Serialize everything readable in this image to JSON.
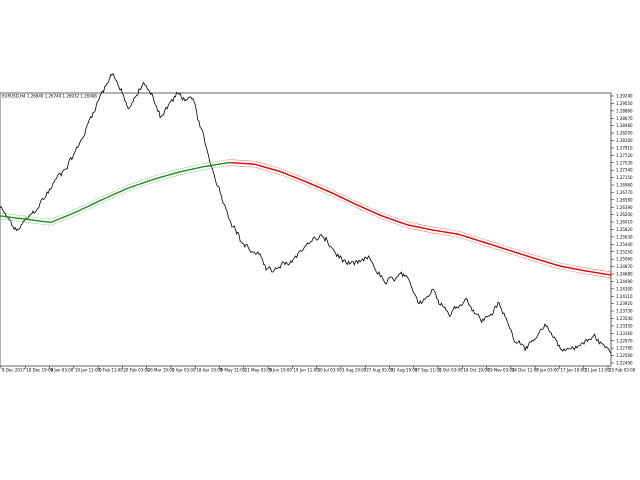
{
  "header": {
    "symbol_line": "EURUSD,H4  1.26949 1.26740 1.26932 1.26908"
  },
  "chart_data": {
    "type": "line",
    "series": [
      {
        "kind": "price",
        "color": "#000000"
      },
      {
        "kind": "moving-average",
        "color_rising": "#228b22",
        "color_falling": "#dd0000"
      }
    ],
    "ylim": [
      1.2249,
      1.2924
    ],
    "y_ticks": [
      "1.29240",
      "1.29050",
      "1.28860",
      "1.28670",
      "1.28480",
      "1.28290",
      "1.28100",
      "1.27910",
      "1.27720",
      "1.27530",
      "1.27340",
      "1.27150",
      "1.26960",
      "1.26770",
      "1.26580",
      "1.26390",
      "1.26200",
      "1.26010",
      "1.25820",
      "1.25630",
      "1.25440",
      "1.25250",
      "1.25060",
      "1.24870",
      "1.24680",
      "1.24490",
      "1.24300",
      "1.24110",
      "1.23920",
      "1.23730",
      "1.23540",
      "1.23350",
      "1.23160",
      "1.22970",
      "1.22780",
      "1.22590",
      "1.22490"
    ],
    "x_ticks": [
      "8 Dec 2017",
      "18 Dec 19:00",
      "8 Jan 03:00",
      "19 Jan 11:00",
      "9 Feb 11:00",
      "20 Feb 03:00",
      "26 Mar 19:00",
      "3 Apr 03:00",
      "18 Apr 19:00",
      "9 May 11:00",
      "21 May 03:00",
      "5 Jun 19:00",
      "19 Jun 11:00",
      "30 Jul 03:00",
      "3 Aug 19:00",
      "27 Aug 03:00",
      "31 Aug 19:00",
      "17 Sep 11:00",
      "2 Oct 03:00",
      "16 Oct 19:00",
      "29 Nov 03:00",
      "14 Dec 11:00",
      "3 Jan 03:00",
      "17 Jan 19:00",
      "31 Jan 11:00",
      "15 Feb 03:00"
    ],
    "price_anchors": [
      1.264,
      1.258,
      1.262,
      1.268,
      1.274,
      1.28,
      1.29,
      1.298,
      1.288,
      1.295,
      1.287,
      1.292,
      1.29,
      1.276,
      1.265,
      1.256,
      1.252,
      1.248,
      1.25,
      1.255,
      1.257,
      1.252,
      1.249,
      1.251,
      1.245,
      1.247,
      1.241,
      1.244,
      1.238,
      1.242,
      1.236,
      1.24,
      1.232,
      1.23,
      1.234,
      1.229,
      1.23,
      1.232,
      1.228
    ],
    "ma_anchors": [
      1.262,
      1.2612,
      1.2604,
      1.263,
      1.266,
      1.2688,
      1.271,
      1.2728,
      1.2742,
      1.2752,
      1.2748,
      1.273,
      1.2705,
      1.2678,
      1.2648,
      1.262,
      1.2598,
      1.2585,
      1.2575,
      1.2555,
      1.2535,
      1.2515,
      1.2496,
      1.2484,
      1.2474
    ],
    "ma_turn_index": 9
  }
}
